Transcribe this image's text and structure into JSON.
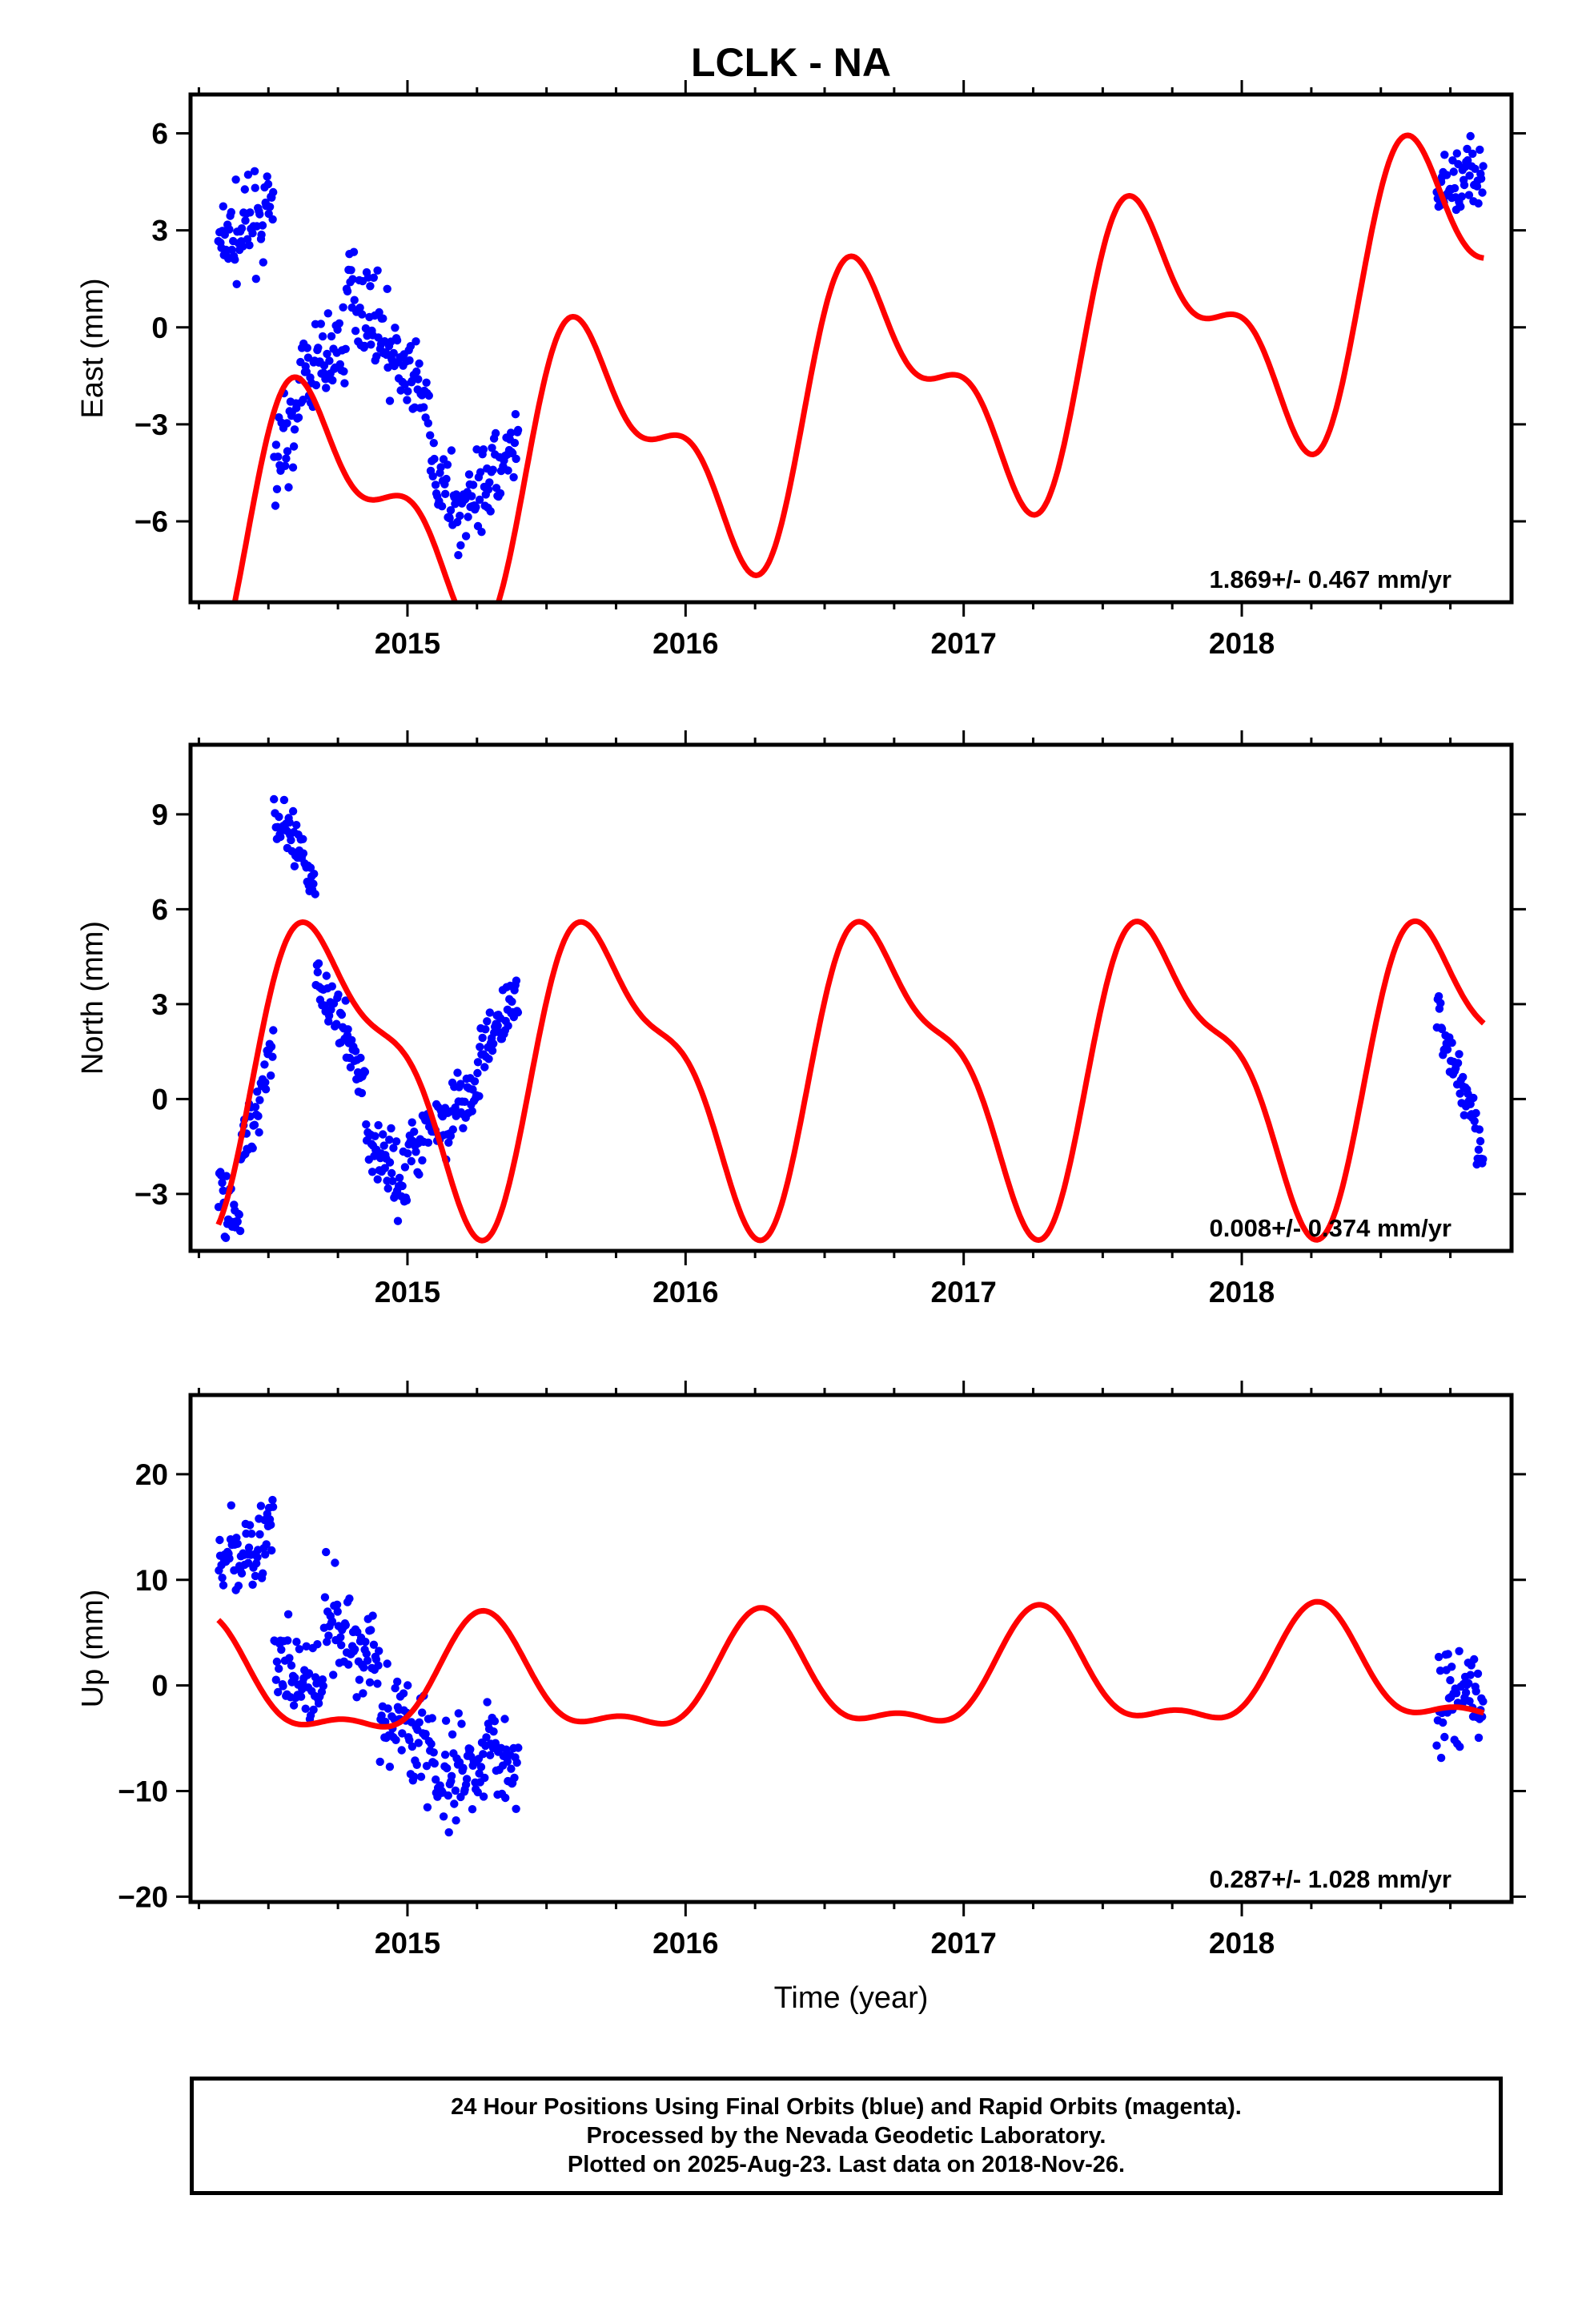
{
  "title": "LCLK - NA",
  "colors": {
    "final_orbits": "#0000ff",
    "model": "#ff0000",
    "frame": "#000000"
  },
  "footer": {
    "line1": "24 Hour Positions Using Final Orbits (blue) and Rapid Orbits (magenta).",
    "line2": "Processed by the Nevada Geodetic Laboratory.",
    "line3": "Plotted on 2025-Aug-23. Last data on 2018-Nov-26."
  },
  "chart_data": [
    {
      "type": "scatter",
      "panel": "east",
      "ylabel": "East (mm)",
      "xlabel": "",
      "xlim": [
        2014.22,
        2018.97
      ],
      "ylim": [
        -8.5,
        7.2
      ],
      "xticks": [
        "2015",
        "2016",
        "2017",
        "2018"
      ],
      "yticks": [
        "−6",
        "−3",
        "0",
        "3",
        "6"
      ],
      "ytick_values": [
        -6,
        -3,
        0,
        3,
        6
      ],
      "rate_label": "1.869+/- 0.467 mm/yr",
      "model": {
        "trend_mm_per_yr": 1.869,
        "offset": -2.5,
        "annual_cos": -1.5,
        "annual_sin": -3.2,
        "semi_cos": 1.5,
        "semi_sin": 1.0
      },
      "segments": [
        {
          "start": 2014.32,
          "end": 2014.52,
          "start_value": 2.5,
          "end_value": 3.6,
          "scatter": 0.9
        },
        {
          "start": 2014.52,
          "end": 2014.62,
          "start_value": -4.0,
          "end_value": -2.5,
          "scatter": 0.9
        },
        {
          "start": 2014.62,
          "end": 2014.78,
          "start_value": -1.5,
          "end_value": -0.5,
          "scatter": 0.9
        },
        {
          "start": 2014.78,
          "end": 2014.92,
          "start_value": 1.2,
          "end_value": 0.0,
          "scatter": 0.9
        },
        {
          "start": 2014.92,
          "end": 2015.08,
          "start_value": -0.5,
          "end_value": -2.5,
          "scatter": 0.9
        },
        {
          "start": 2015.08,
          "end": 2015.22,
          "start_value": -4.5,
          "end_value": -6.0,
          "scatter": 0.9
        },
        {
          "start": 2015.22,
          "end": 2015.4,
          "start_value": -5.0,
          "end_value": -4.0,
          "scatter": 0.9
        },
        {
          "start": 2018.7,
          "end": 2018.87,
          "start_value": 4.0,
          "end_value": 4.8,
          "scatter": 0.9
        }
      ]
    },
    {
      "type": "scatter",
      "panel": "north",
      "ylabel": "North (mm)",
      "xlabel": "",
      "xlim": [
        2014.22,
        2018.97
      ],
      "ylim": [
        -4.8,
        11.2
      ],
      "xticks": [
        "2015",
        "2016",
        "2017",
        "2018"
      ],
      "yticks": [
        "−3",
        "0",
        "3",
        "6",
        "9"
      ],
      "ytick_values": [
        -3,
        0,
        3,
        6,
        9
      ],
      "rate_label": "0.008+/- 0.374 mm/yr",
      "model": {
        "trend_mm_per_yr": 0.008,
        "offset": 1.0,
        "annual_cos": -0.9,
        "annual_sin": -4.2,
        "semi_cos": 1.2,
        "semi_sin": 1.0
      },
      "segments": [
        {
          "start": 2014.32,
          "end": 2014.4,
          "start_value": -3.0,
          "end_value": -3.5,
          "scatter": 0.7
        },
        {
          "start": 2014.4,
          "end": 2014.52,
          "start_value": -2.0,
          "end_value": 2.0,
          "scatter": 0.7
        },
        {
          "start": 2014.52,
          "end": 2014.67,
          "start_value": 9.0,
          "end_value": 6.8,
          "scatter": 0.7
        },
        {
          "start": 2014.67,
          "end": 2014.85,
          "start_value": 4.0,
          "end_value": 0.5,
          "scatter": 0.7
        },
        {
          "start": 2014.85,
          "end": 2015.0,
          "start_value": -1.0,
          "end_value": -3.0,
          "scatter": 0.7
        },
        {
          "start": 2015.0,
          "end": 2015.25,
          "start_value": -1.5,
          "end_value": 0.2,
          "scatter": 0.7
        },
        {
          "start": 2015.25,
          "end": 2015.4,
          "start_value": 1.0,
          "end_value": 3.5,
          "scatter": 0.7
        },
        {
          "start": 2018.7,
          "end": 2018.87,
          "start_value": 2.8,
          "end_value": -1.6,
          "scatter": 0.7
        }
      ]
    },
    {
      "type": "scatter",
      "panel": "up",
      "ylabel": "Up (mm)",
      "xlabel": "Time (year)",
      "xlim": [
        2014.22,
        2018.97
      ],
      "ylim": [
        -20.5,
        27.5
      ],
      "xticks": [
        "2015",
        "2016",
        "2017",
        "2018"
      ],
      "yticks": [
        "−20",
        "−10",
        "0",
        "10",
        "20"
      ],
      "ytick_values": [
        -20,
        -10,
        0,
        10,
        20
      ],
      "rate_label": "0.287+/- 1.028 mm/yr",
      "model": {
        "trend_mm_per_yr": 0.287,
        "offset": 0.3,
        "annual_cos": -0.8,
        "annual_sin": 5.0,
        "semi_cos": -2.0,
        "semi_sin": -0.5
      },
      "segments": [
        {
          "start": 2014.32,
          "end": 2014.52,
          "start_value": 11.0,
          "end_value": 15.0,
          "scatter": 2.6
        },
        {
          "start": 2014.52,
          "end": 2014.7,
          "start_value": 2.0,
          "end_value": -1.0,
          "scatter": 3.0
        },
        {
          "start": 2014.7,
          "end": 2014.9,
          "start_value": 6.0,
          "end_value": 2.0,
          "scatter": 3.0
        },
        {
          "start": 2014.9,
          "end": 2015.1,
          "start_value": -2.0,
          "end_value": -6.0,
          "scatter": 3.5
        },
        {
          "start": 2015.1,
          "end": 2015.28,
          "start_value": -10.0,
          "end_value": -9.0,
          "scatter": 3.5
        },
        {
          "start": 2015.28,
          "end": 2015.4,
          "start_value": -5.0,
          "end_value": -8.0,
          "scatter": 3.0
        },
        {
          "start": 2018.7,
          "end": 2018.87,
          "start_value": -1.5,
          "end_value": -1.0,
          "scatter": 3.0
        }
      ]
    }
  ]
}
